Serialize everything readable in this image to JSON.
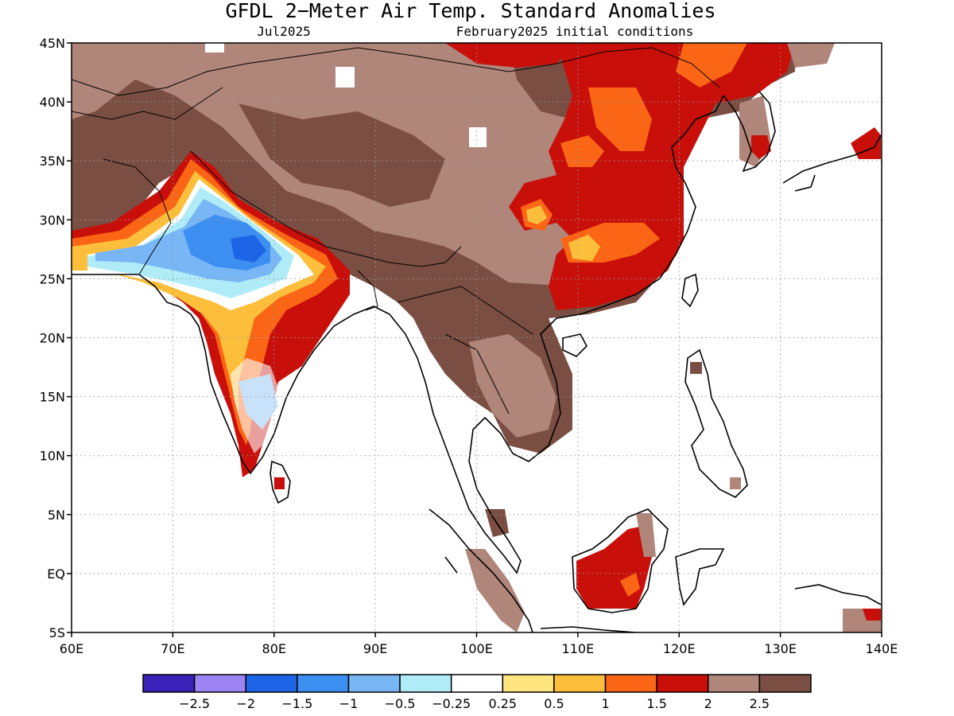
{
  "title": "GFDL 2−Meter Air Temp. Standard Anomalies",
  "valid_month": "Jul2025",
  "initial_conditions": "February2025 initial conditions",
  "axes": {
    "lon_range": [
      60,
      140
    ],
    "lat_range": [
      -5,
      45
    ],
    "lon_ticks": [
      "60E",
      "70E",
      "80E",
      "90E",
      "100E",
      "110E",
      "120E",
      "130E",
      "140E"
    ],
    "lat_ticks": [
      "45N",
      "40N",
      "35N",
      "30N",
      "25N",
      "20N",
      "15N",
      "10N",
      "5N",
      "EQ",
      "5S"
    ],
    "grid": "dotted"
  },
  "colorbar": {
    "colors": [
      "#3a22b8",
      "#9d84f5",
      "#1e64e6",
      "#3c8ff0",
      "#78b6f5",
      "#b0ecf7",
      "#ffffff",
      "#fde47e",
      "#fdbf3b",
      "#fa6615",
      "#c80f0a",
      "#b0857a",
      "#7a4e42"
    ],
    "labels": [
      "−2.5",
      "−2",
      "−1.5",
      "−1",
      "−0.5",
      "−0.25",
      "0.25",
      "0.5",
      "1",
      "1.5",
      "2",
      "2.5"
    ]
  }
}
